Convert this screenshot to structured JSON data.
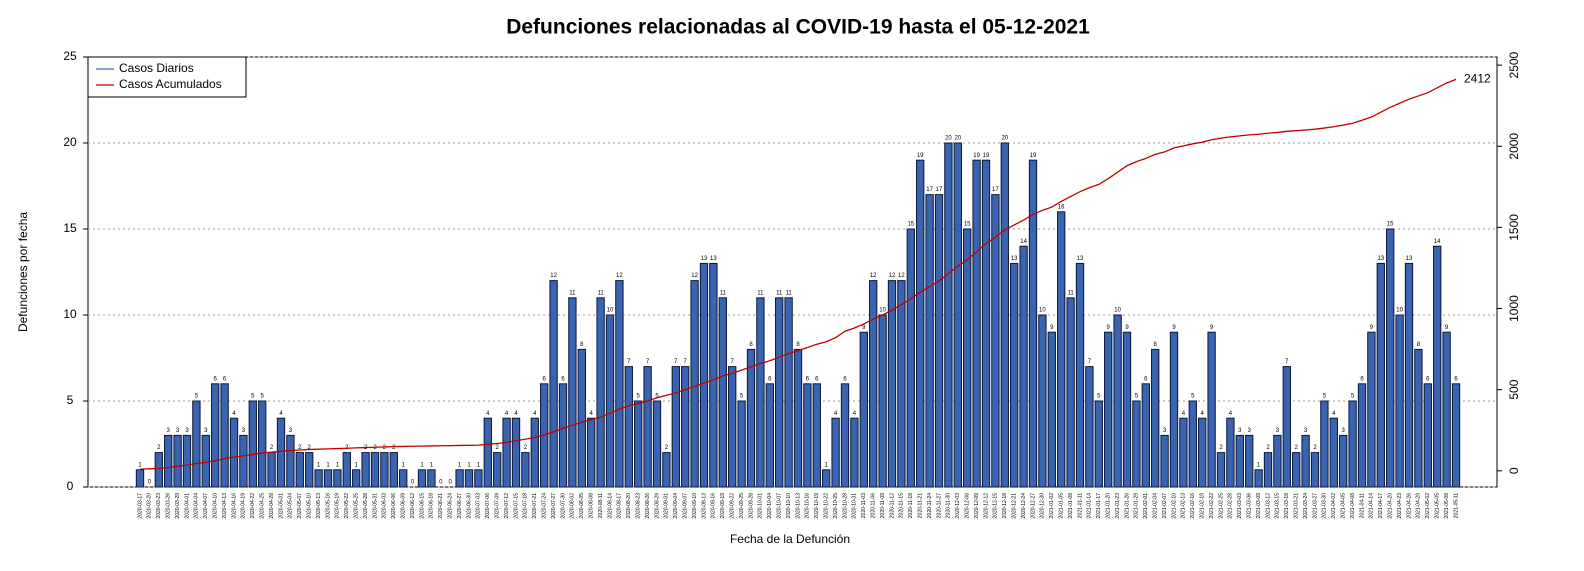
{
  "chart_data": {
    "type": "bar",
    "title": "Defunciones relacionadas al COVID-19 hasta el 05-12-2021",
    "x_label": "Fecha de la Defunción",
    "y_label": "Defunciones por fecha",
    "categories": [
      "2020-03-17",
      "2020-03-20",
      "2020-03-23",
      "2020-03-26",
      "2020-03-29",
      "2020-04-01",
      "2020-04-04",
      "2020-04-07",
      "2020-04-10",
      "2020-04-13",
      "2020-04-16",
      "2020-04-19",
      "2020-04-22",
      "2020-04-25",
      "2020-04-28",
      "2020-05-01",
      "2020-05-04",
      "2020-05-07",
      "2020-05-10",
      "2020-05-13",
      "2020-05-16",
      "2020-05-19",
      "2020-05-22",
      "2020-05-25",
      "2020-05-28",
      "2020-05-31",
      "2020-06-03",
      "2020-06-06",
      "2020-06-09",
      "2020-06-12",
      "2020-06-15",
      "2020-06-18",
      "2020-06-21",
      "2020-06-24",
      "2020-06-27",
      "2020-06-30",
      "2020-07-03",
      "2020-07-06",
      "2020-07-09",
      "2020-07-12",
      "2020-07-15",
      "2020-07-18",
      "2020-07-21",
      "2020-07-24",
      "2020-07-27",
      "2020-07-30",
      "2020-08-02",
      "2020-08-05",
      "2020-08-08",
      "2020-08-11",
      "2020-08-14",
      "2020-08-17",
      "2020-08-20",
      "2020-08-23",
      "2020-08-26",
      "2020-08-29",
      "2020-09-01",
      "2020-09-04",
      "2020-09-07",
      "2020-09-10",
      "2020-09-13",
      "2020-09-16",
      "2020-09-19",
      "2020-09-22",
      "2020-09-25",
      "2020-09-28",
      "2020-10-01",
      "2020-10-04",
      "2020-10-07",
      "2020-10-10",
      "2020-10-13",
      "2020-10-16",
      "2020-10-19",
      "2020-10-22",
      "2020-10-25",
      "2020-10-28",
      "2020-10-31",
      "2020-11-03",
      "2020-11-06",
      "2020-11-09",
      "2020-11-12",
      "2020-11-15",
      "2020-11-18",
      "2020-11-21",
      "2020-11-24",
      "2020-11-27",
      "2020-11-30",
      "2020-12-03",
      "2020-12-06",
      "2020-12-09",
      "2020-12-12",
      "2020-12-15",
      "2020-12-18",
      "2020-12-21",
      "2020-12-24",
      "2020-12-27",
      "2020-12-30",
      "2021-01-02",
      "2021-01-05",
      "2021-01-08",
      "2021-01-11",
      "2021-01-14",
      "2021-01-17",
      "2021-01-20",
      "2021-01-23",
      "2021-01-26",
      "2021-01-29",
      "2021-02-01",
      "2021-02-04",
      "2021-02-07",
      "2021-02-10",
      "2021-02-13",
      "2021-02-16",
      "2021-02-19",
      "2021-02-22",
      "2021-02-25",
      "2021-02-28",
      "2021-03-03",
      "2021-03-06",
      "2021-03-09",
      "2021-03-12",
      "2021-03-15",
      "2021-03-18",
      "2021-03-21",
      "2021-03-24",
      "2021-03-27",
      "2021-03-30",
      "2021-04-02",
      "2021-04-05",
      "2021-04-08",
      "2021-04-11",
      "2021-04-14",
      "2021-04-17",
      "2021-04-20",
      "2021-04-23",
      "2021-04-26",
      "2021-04-29",
      "2021-05-02",
      "2021-05-05",
      "2021-05-08",
      "2021-05-11"
    ],
    "series": [
      {
        "name": "Casos Diarios",
        "color": "#3a64b0",
        "edge": "#0b1838",
        "values": [
          1,
          0,
          2,
          3,
          3,
          3,
          5,
          3,
          6,
          6,
          4,
          3,
          5,
          5,
          2,
          4,
          3,
          2,
          2,
          1,
          1,
          1,
          2,
          1,
          2,
          2,
          2,
          2,
          1,
          0,
          1,
          1,
          0,
          0,
          1,
          1,
          1,
          4,
          2,
          4,
          4,
          2,
          4,
          6,
          12,
          6,
          11,
          8,
          4,
          11,
          10,
          12,
          7,
          5,
          7,
          5,
          2,
          7,
          7,
          12,
          13,
          13,
          11,
          7,
          5,
          8,
          11,
          6,
          11,
          11,
          8,
          6,
          6,
          1,
          4,
          6,
          4,
          9,
          12,
          10,
          12,
          12,
          15,
          19,
          17,
          17,
          20,
          20,
          15,
          19,
          19,
          17,
          20,
          13,
          14,
          19,
          10,
          9,
          16,
          11,
          13,
          7,
          5,
          9,
          10,
          9,
          5,
          6,
          8,
          3,
          9,
          4,
          5,
          4,
          9,
          2,
          4,
          3,
          3,
          1,
          2,
          3,
          7,
          2,
          3,
          2,
          5,
          4,
          3,
          5,
          6,
          9,
          13,
          15,
          10,
          13,
          8,
          6,
          14,
          9,
          6
        ]
      },
      {
        "name": "Casos Acumulados",
        "color": "#c00000",
        "type": "line",
        "axis": "y2",
        "values": [
          10,
          12,
          15,
          20,
          28,
          35,
          45,
          52,
          62,
          75,
          85,
          92,
          100,
          110,
          115,
          120,
          125,
          128,
          131,
          133,
          135,
          137,
          139,
          141,
          143,
          145,
          147,
          149,
          150,
          151,
          152,
          153,
          154,
          155,
          156,
          157,
          158,
          163,
          168,
          175,
          185,
          195,
          205,
          220,
          240,
          262,
          280,
          300,
          315,
          330,
          355,
          380,
          400,
          415,
          430,
          450,
          465,
          480,
          500,
          520,
          540,
          560,
          585,
          600,
          620,
          640,
          660,
          678,
          700,
          722,
          740,
          760,
          780,
          795,
          820,
          860,
          880,
          905,
          935,
          960,
          990,
          1025,
          1060,
          1100,
          1135,
          1170,
          1215,
          1260,
          1300,
          1350,
          1400,
          1440,
          1485,
          1515,
          1545,
          1580,
          1605,
          1625,
          1660,
          1690,
          1720,
          1745,
          1765,
          1800,
          1840,
          1880,
          1905,
          1925,
          1950,
          1965,
          1990,
          2002,
          2015,
          2025,
          2040,
          2050,
          2058,
          2064,
          2070,
          2074,
          2080,
          2085,
          2092,
          2096,
          2100,
          2105,
          2112,
          2120,
          2130,
          2142,
          2160,
          2180,
          2210,
          2240,
          2265,
          2290,
          2310,
          2330,
          2360,
          2390,
          2412
        ]
      }
    ],
    "ylim": [
      0,
      25
    ],
    "yticks": [
      0,
      5,
      10,
      15,
      20,
      25
    ],
    "y2lim": [
      -100,
      2550
    ],
    "y2ticks": [
      0,
      500,
      1000,
      1500,
      2000,
      2500
    ],
    "grid": true,
    "legend": "top-left"
  }
}
